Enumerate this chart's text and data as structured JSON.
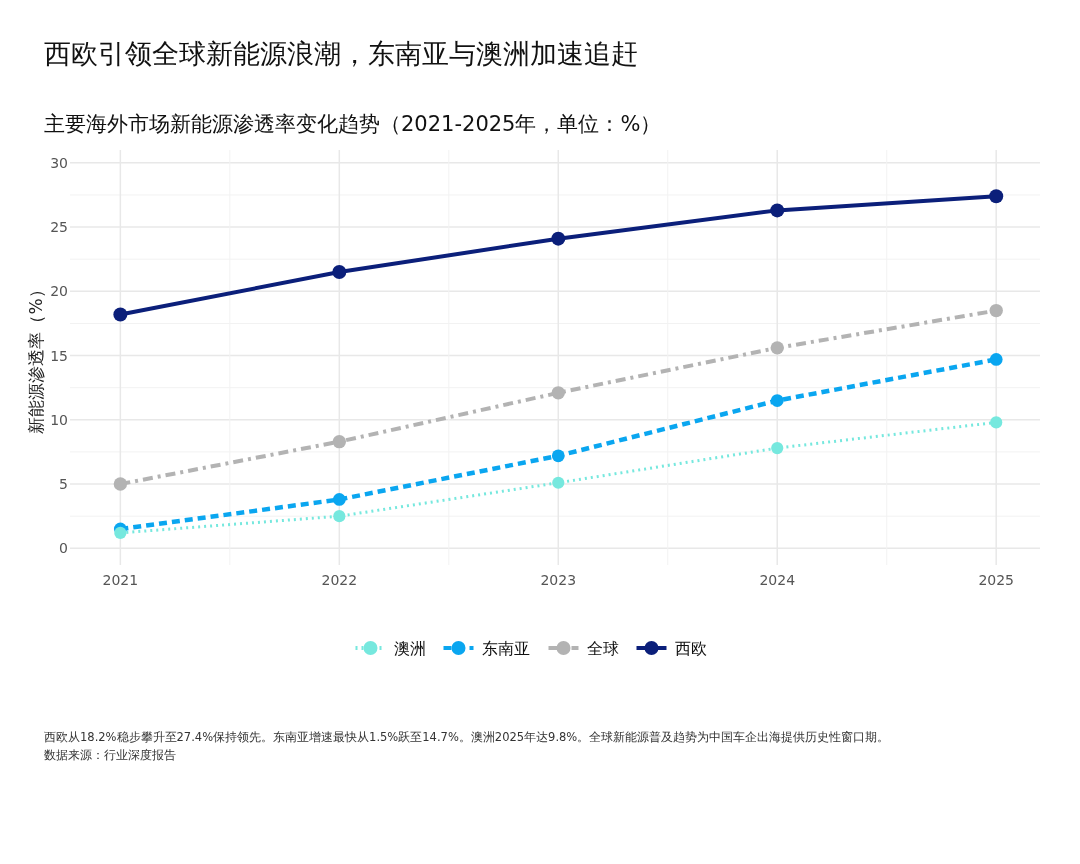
{
  "chart_data": {
    "type": "line",
    "title": "西欧引领全球新能源浪潮，东南亚与澳洲加速追赶",
    "subtitle": "主要海外市场新能源渗透率变化趋势（2021-2025年，单位：%）",
    "ylabel": "新能源渗透率（%）",
    "x": [
      2021,
      2022,
      2023,
      2024,
      2025
    ],
    "series": [
      {
        "name": "澳洲",
        "color": "#76e8de",
        "line_style": "dotted",
        "values": [
          1.2,
          2.5,
          5.1,
          7.8,
          9.8
        ]
      },
      {
        "name": "东南亚",
        "color": "#0aa6f0",
        "line_style": "dashed",
        "values": [
          1.5,
          3.8,
          7.2,
          11.5,
          14.7
        ]
      },
      {
        "name": "全球",
        "color": "#b3b3b3",
        "line_style": "dashdot",
        "values": [
          5.0,
          8.3,
          12.1,
          15.6,
          18.5
        ]
      },
      {
        "name": "西欧",
        "color": "#0b1f7a",
        "line_style": "solid",
        "values": [
          18.2,
          21.5,
          24.1,
          26.3,
          27.4
        ]
      }
    ],
    "xlim": [
      2020.77,
      2025.2
    ],
    "ylim": [
      -1.3,
      31
    ],
    "xticks": [
      2021,
      {
        "value": 2021.5,
        "label": null
      },
      2022,
      {
        "value": 2022.5,
        "label": null
      },
      2023,
      {
        "value": 2023.5,
        "label": null
      },
      2024,
      {
        "value": 2024.5,
        "label": null
      },
      2025
    ],
    "yticks": [
      0,
      {
        "value": 2.5,
        "label": null
      },
      5,
      {
        "value": 7.5,
        "label": null
      },
      10,
      {
        "value": 12.5,
        "label": null
      },
      15,
      {
        "value": 17.5,
        "label": null
      },
      20,
      {
        "value": 22.5,
        "label": null
      },
      25,
      {
        "value": 27.5,
        "label": null
      },
      30
    ],
    "grid": true,
    "legend": "bottom",
    "marker": "circle",
    "annotations": [
      "西欧从18.2%稳步攀升至27.4%保持领先。东南亚增速最快从1.5%跃至14.7%。澳洲2025年达9.8%。全球新能源普及趋势为中国车企出海提供历史性窗口期。",
      "数据来源：行业深度报告"
    ]
  }
}
